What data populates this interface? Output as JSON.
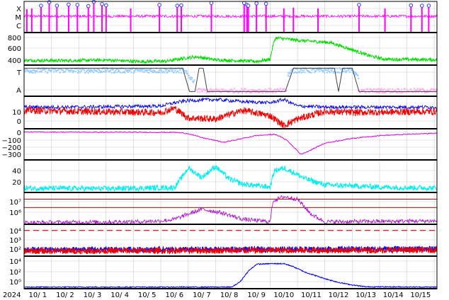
{
  "chart_data": {
    "type": "line",
    "x_tick_labels": [
      "10/ 1",
      "10/ 2",
      "10/ 3",
      "10/ 4",
      "10/ 5",
      "10/ 6",
      "10/ 7",
      "10/ 8",
      "10/ 9",
      "10/10",
      "10/11",
      "10/12",
      "10/13",
      "10/14",
      "10/15"
    ],
    "year_label": "2024",
    "xlim": [
      0,
      15.1
    ],
    "panels": [
      {
        "id": "flare",
        "type": "events",
        "ytick_labels": [
          "X",
          "M",
          "C"
        ],
        "ylim": [
          0,
          4
        ],
        "colors": {
          "trace": "#ff00ff",
          "marker": "#3333ff"
        },
        "events": [
          {
            "t": 0.1,
            "v": 3.0,
            "m": false
          },
          {
            "t": 0.28,
            "v": 3.1,
            "m": false
          },
          {
            "t": 0.62,
            "v": 3.45,
            "m": true
          },
          {
            "t": 0.92,
            "v": 3.9,
            "m": true
          },
          {
            "t": 1.2,
            "v": 3.45,
            "m": true
          },
          {
            "t": 1.63,
            "v": 3.6,
            "m": true
          },
          {
            "t": 1.95,
            "v": 3.55,
            "m": true
          },
          {
            "t": 2.35,
            "v": 3.4,
            "m": true
          },
          {
            "t": 2.55,
            "v": 3.95,
            "m": true
          },
          {
            "t": 2.85,
            "v": 3.65,
            "m": true
          },
          {
            "t": 3.0,
            "v": 3.5,
            "m": true
          },
          {
            "t": 3.9,
            "v": 3.1,
            "m": false
          },
          {
            "t": 4.95,
            "v": 3.55,
            "m": true
          },
          {
            "t": 5.6,
            "v": 3.45,
            "m": true
          },
          {
            "t": 5.75,
            "v": 3.5,
            "m": true
          },
          {
            "t": 6.85,
            "v": 3.8,
            "m": true
          },
          {
            "t": 8.05,
            "v": 3.8,
            "m": true
          },
          {
            "t": 8.15,
            "v": 3.55,
            "m": true
          },
          {
            "t": 8.2,
            "v": 3.45,
            "m": true
          },
          {
            "t": 8.5,
            "v": 3.75,
            "m": true
          },
          {
            "t": 8.85,
            "v": 3.7,
            "m": true
          },
          {
            "t": 9.5,
            "v": 3.1,
            "m": false
          },
          {
            "t": 9.85,
            "v": 3.2,
            "m": false
          },
          {
            "t": 10.75,
            "v": 3.1,
            "m": false
          },
          {
            "t": 12.25,
            "v": 3.55,
            "m": true
          },
          {
            "t": 13.2,
            "v": 3.1,
            "m": false
          },
          {
            "t": 14.15,
            "v": 3.5,
            "m": true
          },
          {
            "t": 14.55,
            "v": 3.45,
            "m": true
          },
          {
            "t": 14.8,
            "v": 3.45,
            "m": true
          }
        ]
      },
      {
        "id": "speed",
        "type": "line",
        "ytick_labels": [
          "400",
          "600",
          "800"
        ],
        "ylim": [
          300,
          850
        ],
        "colors": {
          "line": "#00dd00"
        },
        "keys": [
          [
            0,
            380
          ],
          [
            1.5,
            375
          ],
          [
            3,
            385
          ],
          [
            4.2,
            360
          ],
          [
            5.2,
            365
          ],
          [
            5.9,
            420
          ],
          [
            6.3,
            440
          ],
          [
            7,
            390
          ],
          [
            8.5,
            360
          ],
          [
            9,
            400
          ],
          [
            9.1,
            630
          ],
          [
            9.2,
            760
          ],
          [
            10,
            720
          ],
          [
            11.2,
            680
          ],
          [
            12,
            560
          ],
          [
            12.6,
            460
          ],
          [
            13.2,
            400
          ],
          [
            15.1,
            390
          ]
        ]
      },
      {
        "id": "type",
        "type": "mixed",
        "ytick_labels": [
          "T",
          "A"
        ],
        "ylim": [
          0,
          1
        ],
        "colors": {
          "blue": "#99ccff",
          "pink": "#ffaaee",
          "step": "#444444"
        },
        "step_keys": [
          [
            0,
            0.9
          ],
          [
            5.8,
            0.9
          ],
          [
            6.05,
            0.15
          ],
          [
            6.25,
            0.15
          ],
          [
            6.4,
            0.9
          ],
          [
            6.55,
            0.9
          ],
          [
            6.7,
            0.15
          ],
          [
            9.55,
            0.15
          ],
          [
            9.85,
            0.9
          ],
          [
            11.35,
            0.9
          ],
          [
            11.5,
            0.15
          ],
          [
            11.65,
            0.9
          ],
          [
            12.0,
            0.9
          ],
          [
            12.25,
            0.15
          ],
          [
            15.1,
            0.15
          ]
        ]
      },
      {
        "id": "bfield",
        "type": "line",
        "ytick_labels": [
          "0",
          "10"
        ],
        "ylim": [
          -15,
          15
        ],
        "colors": {
          "line1": "#0000ee",
          "line2": "#ee0000"
        },
        "keys1": [
          [
            0,
            5
          ],
          [
            2,
            5
          ],
          [
            5,
            6
          ],
          [
            5.5,
            9
          ],
          [
            6,
            11
          ],
          [
            7,
            12
          ],
          [
            8,
            10
          ],
          [
            9,
            9
          ],
          [
            9.5,
            12
          ],
          [
            10,
            6
          ],
          [
            11,
            5
          ],
          [
            15.1,
            5
          ]
        ],
        "keys2": [
          [
            0,
            2
          ],
          [
            2,
            1
          ],
          [
            5,
            0
          ],
          [
            5.5,
            4
          ],
          [
            6,
            -5
          ],
          [
            7,
            -6
          ],
          [
            8,
            2
          ],
          [
            9,
            -3
          ],
          [
            9.5,
            -12
          ],
          [
            10,
            -6
          ],
          [
            11,
            1
          ],
          [
            12,
            0
          ],
          [
            15.1,
            1
          ]
        ]
      },
      {
        "id": "dst",
        "type": "line",
        "ytick_labels": [
          "0",
          "−100",
          "−200",
          "−300"
        ],
        "ylim": [
          -360,
          30
        ],
        "colors": {
          "line": "#dd00dd"
        },
        "keys": [
          [
            0,
            -10
          ],
          [
            5.5,
            -15
          ],
          [
            6,
            -30
          ],
          [
            6.5,
            -80
          ],
          [
            7.3,
            -140
          ],
          [
            8,
            -90
          ],
          [
            8.5,
            -55
          ],
          [
            9.2,
            -40
          ],
          [
            9.6,
            -110
          ],
          [
            9.95,
            -230
          ],
          [
            10.12,
            -290
          ],
          [
            10.4,
            -250
          ],
          [
            11,
            -150
          ],
          [
            12,
            -90
          ],
          [
            13,
            -55
          ],
          [
            14,
            -40
          ],
          [
            15.1,
            -25
          ]
        ]
      },
      {
        "id": "kp",
        "type": "line",
        "ytick_labels": [
          "20",
          "40"
        ],
        "ylim": [
          0,
          60
        ],
        "colors": {
          "line": "#00eeee"
        },
        "keys": [
          [
            0,
            8
          ],
          [
            3,
            7
          ],
          [
            5.5,
            9
          ],
          [
            5.8,
            30
          ],
          [
            6,
            45
          ],
          [
            6.5,
            28
          ],
          [
            7,
            48
          ],
          [
            7.5,
            25
          ],
          [
            8,
            15
          ],
          [
            9,
            10
          ],
          [
            9.15,
            40
          ],
          [
            9.5,
            45
          ],
          [
            9.8,
            38
          ],
          [
            10.3,
            25
          ],
          [
            11,
            14
          ],
          [
            13,
            10
          ],
          [
            15.1,
            8
          ]
        ]
      },
      {
        "id": "electron",
        "type": "line",
        "ytick_labels": [
          "10⁶",
          "10⁷"
        ],
        "ylim": [
          4,
          7.8
        ],
        "colors": {
          "line": "#aa00cc",
          "ref": "#cc0000"
        },
        "ref_levels": [
          6,
          7
        ],
        "keys": [
          [
            0,
            4.2
          ],
          [
            4,
            4.3
          ],
          [
            5,
            4.4
          ],
          [
            5.5,
            4.6
          ],
          [
            6.5,
            5.8
          ],
          [
            7.2,
            5.4
          ],
          [
            8,
            4.6
          ],
          [
            9,
            4.3
          ],
          [
            9.1,
            6.8
          ],
          [
            9.5,
            7.3
          ],
          [
            10,
            7.0
          ],
          [
            10.5,
            5.2
          ],
          [
            11,
            4.3
          ],
          [
            15.1,
            4.4
          ]
        ]
      },
      {
        "id": "proton",
        "type": "line",
        "ytick_labels": [
          "10²",
          "10³",
          "10⁴"
        ],
        "ylim": [
          1.4,
          4.5
        ],
        "colors": {
          "line1": "#0000ee",
          "line2": "#ee0000",
          "ref": "#dd0000"
        },
        "ref_level": 3.9,
        "keys1": [
          [
            0,
            2.0
          ],
          [
            15.1,
            2.1
          ]
        ],
        "keys2": [
          [
            0,
            1.9
          ],
          [
            15.1,
            2.0
          ]
        ]
      },
      {
        "id": "highenergy",
        "type": "line",
        "ytick_labels": [
          "10⁰",
          "10²",
          "10⁴"
        ],
        "ylim": [
          -0.6,
          4.6
        ],
        "colors": {
          "line": "#0000ee"
        },
        "keys": [
          [
            0,
            -0.35
          ],
          [
            7.6,
            -0.35
          ],
          [
            7.9,
            0.5
          ],
          [
            8.2,
            2.2
          ],
          [
            8.5,
            3.3
          ],
          [
            9.0,
            3.4
          ],
          [
            9.5,
            3.4
          ],
          [
            9.8,
            3.0
          ],
          [
            10.3,
            2.0
          ],
          [
            11,
            1.0
          ],
          [
            11.5,
            0.4
          ],
          [
            12,
            0.0
          ],
          [
            12.5,
            -0.3
          ],
          [
            15.1,
            -0.35
          ]
        ]
      }
    ]
  },
  "colors": {
    "axis": "#000000",
    "grid": "#cccccc",
    "bg": "#ffffff"
  }
}
